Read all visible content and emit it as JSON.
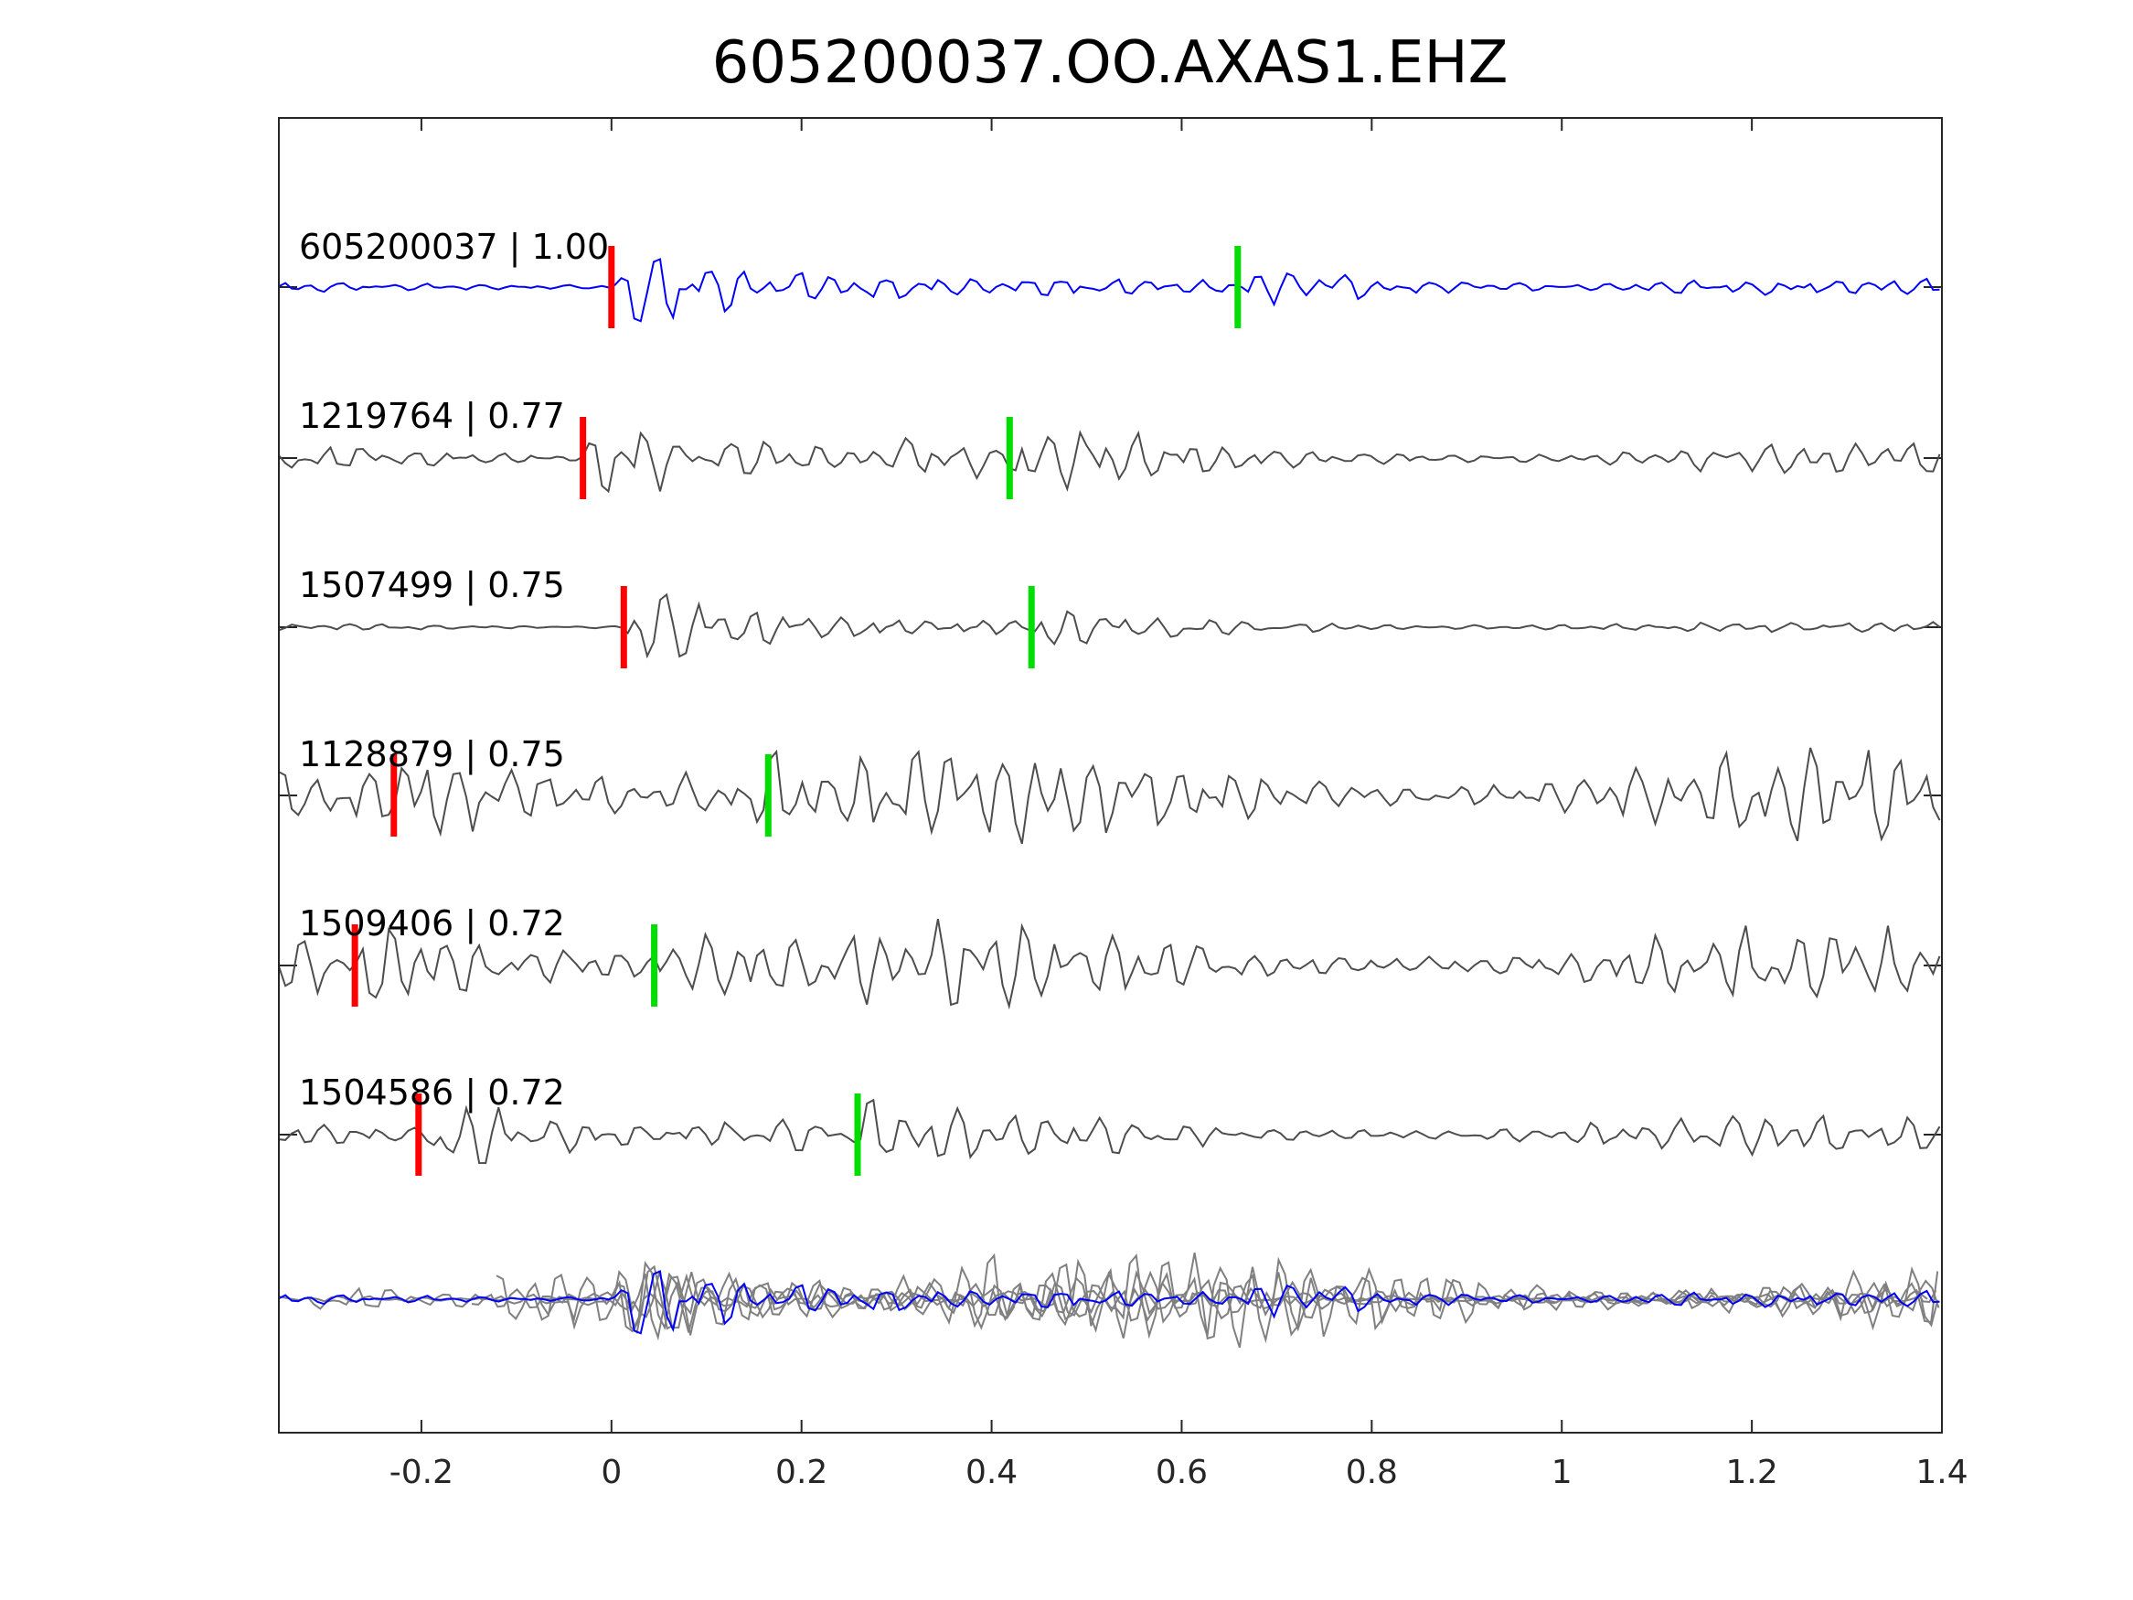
{
  "chart_data": {
    "type": "line",
    "title": "605200037.OO.AXAS1.EHZ",
    "xlabel": "",
    "ylabel": "",
    "xlim": [
      -0.35,
      1.4
    ],
    "xticks": [
      -0.2,
      0,
      0.2,
      0.4,
      0.6,
      0.8,
      1,
      1.2,
      1.4
    ],
    "xtick_labels": [
      "-0.2",
      "0",
      "0.2",
      "0.4",
      "0.6",
      "0.8",
      "1",
      "1.2",
      "1.4"
    ],
    "grid": false,
    "colors": {
      "template": "#0000ff",
      "neighbor": "#4d4d4d",
      "stack": "#808080",
      "p_pick": "#ff0000",
      "s_pick": "#00dd00"
    },
    "traces": [
      {
        "label": "605200037 | 1.00",
        "id": "605200037",
        "cc": 1.0,
        "p_pick": 0.0,
        "s_pick": 0.659,
        "noise_level": 0.15,
        "signal_level": 1.0,
        "template": true
      },
      {
        "label": "1219764 | 0.77",
        "id": "1219764",
        "cc": 0.77,
        "p_pick": -0.03,
        "s_pick": 0.419,
        "noise_level": 0.3,
        "signal_level": 1.0,
        "template": false
      },
      {
        "label": "1507499 | 0.75",
        "id": "1507499",
        "cc": 0.75,
        "p_pick": 0.013,
        "s_pick": 0.442,
        "noise_level": 0.1,
        "signal_level": 1.0,
        "template": false
      },
      {
        "label": "1128879 | 0.75",
        "id": "1128879",
        "cc": 0.75,
        "p_pick": -0.229,
        "s_pick": 0.165,
        "noise_level": 0.8,
        "signal_level": 1.0,
        "template": false
      },
      {
        "label": "1509406 | 0.72",
        "id": "1509406",
        "cc": 0.72,
        "p_pick": -0.27,
        "s_pick": 0.045,
        "noise_level": 0.7,
        "signal_level": 0.9,
        "template": false
      },
      {
        "label": "1504586 | 0.72",
        "id": "1504586",
        "cc": 0.72,
        "p_pick": -0.203,
        "s_pick": 0.259,
        "noise_level": 0.35,
        "signal_level": 0.8,
        "template": false
      }
    ]
  }
}
